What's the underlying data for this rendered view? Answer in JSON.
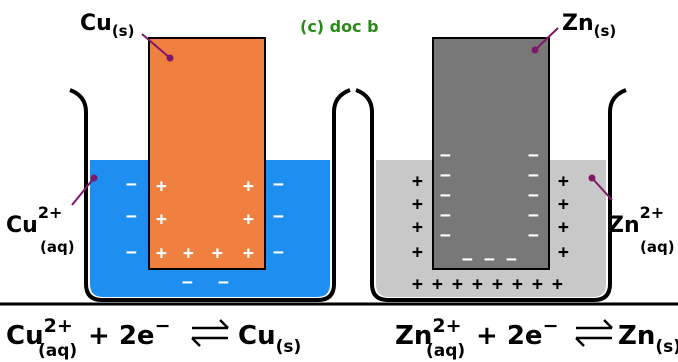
{
  "title": "(c) doc b",
  "left_cell": {
    "electrode": {
      "symbol": "Cu",
      "state": "(s)",
      "color": "#f08040"
    },
    "solution": {
      "ion": "Cu",
      "charge": "2+",
      "state": "(aq)",
      "color": "#1e8ff0"
    },
    "equation": {
      "ion": "Cu",
      "charge": "2+",
      "ion_state": "(aq)",
      "electrons": "+ 2e",
      "electron_charge": "−",
      "product": "Cu",
      "product_state": "(s)"
    }
  },
  "right_cell": {
    "electrode": {
      "symbol": "Zn",
      "state": "(s)",
      "color": "#787878"
    },
    "solution": {
      "ion": "Zn",
      "charge": "2+",
      "state": "(aq)",
      "color": "#c8c8c8"
    },
    "equation": {
      "ion": "Zn",
      "charge": "2+",
      "ion_state": "(aq)",
      "electrons": "+ 2e",
      "electron_charge": "−",
      "product": "Zn",
      "product_state": "(s)"
    }
  },
  "signs": {
    "plus": "+",
    "minus": "−"
  },
  "colors": {
    "title": "#2a8a18",
    "beaker_outline": "#000000",
    "pointer": "#80186a"
  }
}
